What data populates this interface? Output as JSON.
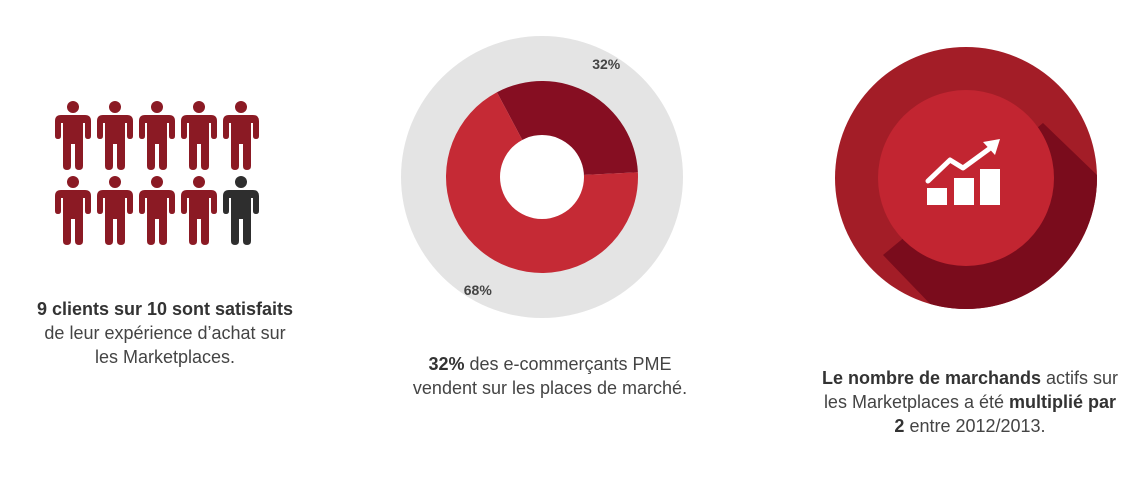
{
  "colors": {
    "primary_red": "#c52a35",
    "dark_red": "#860e22",
    "person_red": "#8b1a24",
    "person_dark": "#2e2e2e",
    "ring_grey": "#e4e4e4",
    "growth_outer": "#a31d27",
    "growth_shadow": "#7a0c1c",
    "growth_inner": "#c22531"
  },
  "satisfaction": {
    "satisfied_count": 9,
    "total_count": 10,
    "caption_bold": "9 clients sur 10 sont satisfaits",
    "caption_rest": " de leur expérience d’achat sur les Marketplaces."
  },
  "chart_data": {
    "type": "pie",
    "categories": [
      "32%",
      "68%"
    ],
    "values": [
      32,
      68
    ],
    "slice_labels": [
      "32%",
      "68%"
    ],
    "title": "",
    "legend": "none"
  },
  "donut_caption": {
    "bold": "32%",
    "rest": " des e-commerçants PME vendent sur les places de marché."
  },
  "growth": {
    "icon": "growth-chart-icon",
    "caption_bold1": "Le nombre de marchands",
    "caption_mid": " actifs sur les Marketplaces a été ",
    "caption_bold2": "multiplié par 2",
    "caption_end": " entre 2012/2013."
  }
}
